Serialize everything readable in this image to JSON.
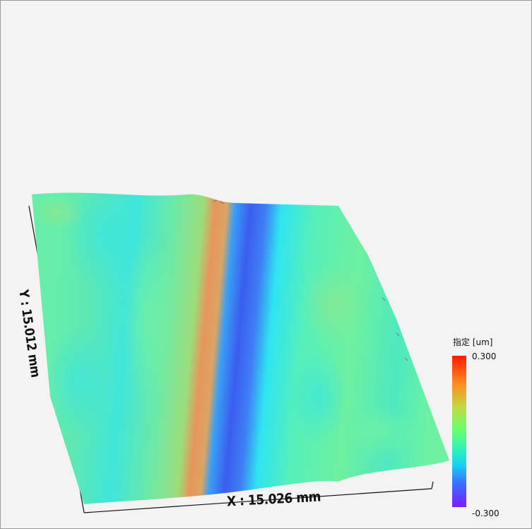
{
  "viewer": {
    "x_axis_label": "X : 15.026 mm",
    "y_axis_label": "Y : 15.012 mm"
  },
  "legend": {
    "title": "指定 [um]",
    "max_label": "0.300",
    "min_label": "-0.300",
    "colors": {
      "max": "#ff1a00",
      "upper": "#ff8a1f",
      "mid": "#6dff6d",
      "lower": "#1ad1f2",
      "min": "#7a1dff"
    }
  },
  "surface_colors": {
    "base": "#5cefa7",
    "ridge": "#e8955a",
    "trough": "#3a5df0",
    "background": "#f3f3f3",
    "frame": "#111111"
  }
}
